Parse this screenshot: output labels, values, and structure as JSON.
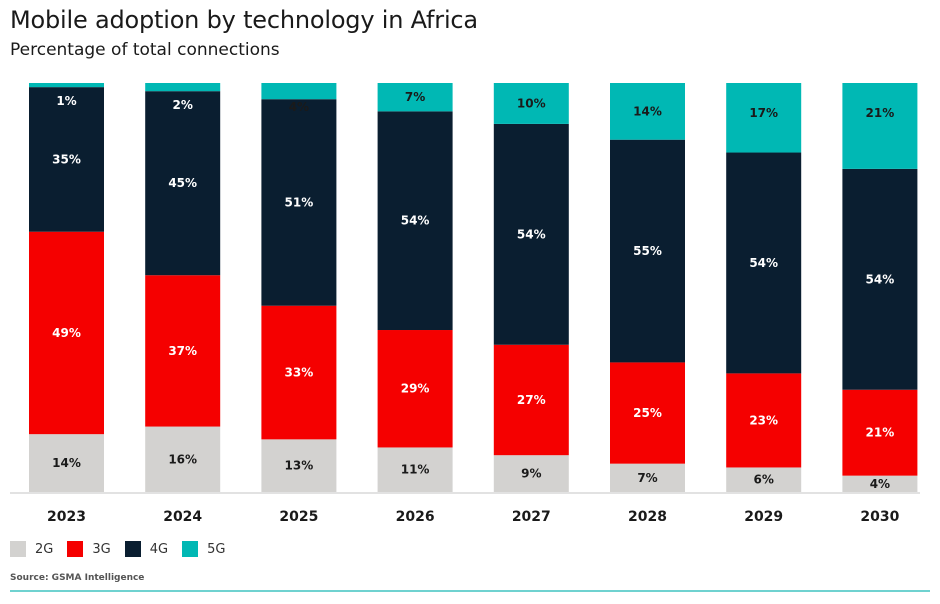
{
  "chart_data": {
    "type": "bar",
    "stacked": true,
    "title": "Mobile adoption by technology in Africa",
    "subtitle": "Percentage of total connections",
    "xlabel": "",
    "ylabel": "",
    "ylim": [
      0,
      100
    ],
    "grid": false,
    "legend_position": "bottom-left",
    "categories": [
      "2023",
      "2024",
      "2025",
      "2026",
      "2027",
      "2028",
      "2029",
      "2030"
    ],
    "series": [
      {
        "name": "2G",
        "color": "#d3d2d0",
        "label_color": "#1a1a1a",
        "values": [
          14,
          16,
          13,
          11,
          9,
          7,
          6,
          4
        ]
      },
      {
        "name": "3G",
        "color": "#f50000",
        "label_color": "#ffffff",
        "values": [
          49,
          37,
          33,
          29,
          27,
          25,
          23,
          21
        ]
      },
      {
        "name": "4G",
        "color": "#0a1e30",
        "label_color": "#ffffff",
        "values": [
          35,
          45,
          51,
          54,
          54,
          55,
          54,
          54
        ]
      },
      {
        "name": "5G",
        "color": "#00b8b4",
        "label_color": "#1a1a1a",
        "values": [
          1,
          2,
          4,
          7,
          10,
          14,
          17,
          21
        ]
      }
    ],
    "hidden_labels": {
      "5G": [
        0,
        1
      ]
    },
    "source": "Source: GSMA Intelligence"
  },
  "header": {
    "title": "Mobile adoption by technology in Africa",
    "subtitle": "Percentage of total connections"
  },
  "legend": [
    {
      "label": "2G",
      "color": "#d3d2d0"
    },
    {
      "label": "3G",
      "color": "#f50000"
    },
    {
      "label": "4G",
      "color": "#0a1e30"
    },
    {
      "label": "5G",
      "color": "#00b8b4"
    }
  ],
  "footer": {
    "source": "Source: GSMA Intelligence"
  }
}
